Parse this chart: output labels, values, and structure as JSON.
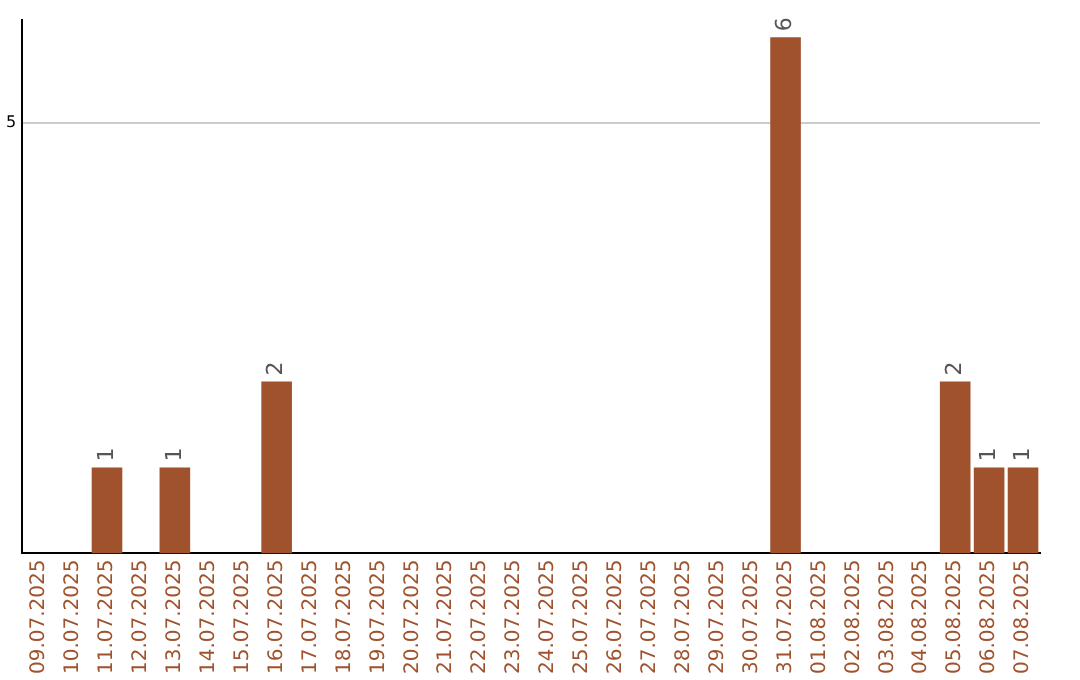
{
  "chart_data": {
    "type": "bar",
    "categories": [
      "09.07.2025",
      "10.07.2025",
      "11.07.2025",
      "12.07.2025",
      "13.07.2025",
      "14.07.2025",
      "15.07.2025",
      "16.07.2025",
      "17.07.2025",
      "18.07.2025",
      "19.07.2025",
      "20.07.2025",
      "21.07.2025",
      "22.07.2025",
      "23.07.2025",
      "24.07.2025",
      "25.07.2025",
      "26.07.2025",
      "27.07.2025",
      "28.07.2025",
      "29.07.2025",
      "30.07.2025",
      "31.07.2025",
      "01.08.2025",
      "02.08.2025",
      "03.08.2025",
      "04.08.2025",
      "05.08.2025",
      "06.08.2025",
      "07.08.2025"
    ],
    "values": [
      0,
      0,
      1,
      0,
      1,
      0,
      0,
      2,
      0,
      0,
      0,
      0,
      0,
      0,
      0,
      0,
      0,
      0,
      0,
      0,
      0,
      0,
      6,
      0,
      0,
      0,
      0,
      2,
      1,
      1
    ],
    "color": "#a0522d",
    "value_labels": [
      null,
      null,
      "1",
      null,
      "1",
      null,
      null,
      "2",
      null,
      null,
      null,
      null,
      null,
      null,
      null,
      null,
      null,
      null,
      null,
      null,
      null,
      null,
      "6",
      null,
      null,
      null,
      null,
      "2",
      "1",
      "1"
    ],
    "ylim": [
      0,
      6.2
    ],
    "yticks": [
      5
    ],
    "grid": "y",
    "legend": false
  }
}
